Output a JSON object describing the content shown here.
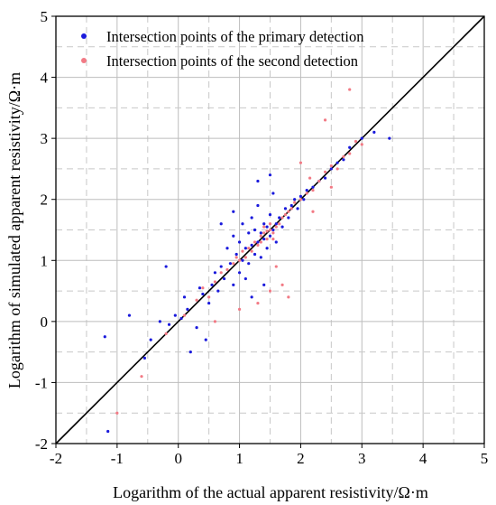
{
  "chart_data": {
    "type": "scatter",
    "xlabel": "Logarithm of the actual apparent resistivity/Ω·m",
    "ylabel": "Logarithm of simulated apparent resistivity/Ω·m",
    "xlim": [
      -2,
      5
    ],
    "ylim": [
      -2,
      5
    ],
    "x_ticks": [
      "-2",
      "-1",
      "0",
      "1",
      "2",
      "3",
      "4",
      "5"
    ],
    "y_ticks": [
      "-2",
      "-1",
      "0",
      "1",
      "2",
      "3",
      "4",
      "5"
    ],
    "grid": true,
    "minor_grid": "dashed",
    "reference_line": {
      "from": [
        -2,
        -2
      ],
      "to": [
        5,
        5
      ],
      "color": "#000000"
    },
    "legend_position": "top-left",
    "series": [
      {
        "name": "Intersection points of the primary detection",
        "color": "#1a1adc",
        "points": [
          [
            -1.2,
            -0.25
          ],
          [
            -1.15,
            -1.8
          ],
          [
            -0.8,
            0.1
          ],
          [
            -0.55,
            -0.6
          ],
          [
            -0.45,
            -0.3
          ],
          [
            -0.3,
            0.0
          ],
          [
            -0.2,
            0.9
          ],
          [
            -0.15,
            -0.05
          ],
          [
            -0.05,
            0.1
          ],
          [
            0.05,
            0.05
          ],
          [
            0.1,
            0.4
          ],
          [
            0.15,
            0.2
          ],
          [
            0.2,
            -0.5
          ],
          [
            0.3,
            -0.1
          ],
          [
            0.35,
            0.55
          ],
          [
            0.4,
            0.45
          ],
          [
            0.45,
            -0.3
          ],
          [
            0.5,
            0.3
          ],
          [
            0.55,
            0.6
          ],
          [
            0.6,
            0.8
          ],
          [
            0.65,
            0.5
          ],
          [
            0.7,
            0.9
          ],
          [
            0.75,
            0.7
          ],
          [
            0.8,
            1.2
          ],
          [
            0.85,
            0.95
          ],
          [
            0.9,
            1.4
          ],
          [
            0.9,
            0.6
          ],
          [
            0.95,
            1.1
          ],
          [
            1.0,
            1.3
          ],
          [
            1.0,
            0.8
          ],
          [
            1.05,
            1.6
          ],
          [
            1.05,
            1.0
          ],
          [
            1.1,
            1.2
          ],
          [
            1.1,
            0.7
          ],
          [
            1.15,
            1.45
          ],
          [
            1.15,
            0.95
          ],
          [
            1.2,
            1.7
          ],
          [
            1.2,
            1.25
          ],
          [
            1.25,
            1.1
          ],
          [
            1.25,
            1.5
          ],
          [
            1.3,
            1.9
          ],
          [
            1.3,
            1.3
          ],
          [
            1.35,
            1.45
          ],
          [
            1.35,
            1.05
          ],
          [
            1.4,
            1.6
          ],
          [
            1.4,
            1.35
          ],
          [
            1.45,
            1.55
          ],
          [
            1.45,
            1.2
          ],
          [
            1.5,
            1.75
          ],
          [
            1.5,
            1.4
          ],
          [
            1.55,
            1.5
          ],
          [
            1.55,
            2.1
          ],
          [
            1.6,
            1.6
          ],
          [
            1.6,
            1.3
          ],
          [
            1.65,
            1.7
          ],
          [
            1.7,
            1.55
          ],
          [
            1.75,
            1.85
          ],
          [
            1.8,
            1.7
          ],
          [
            1.85,
            1.9
          ],
          [
            1.9,
            2.0
          ],
          [
            1.95,
            1.85
          ],
          [
            2.0,
            2.05
          ],
          [
            2.05,
            2.0
          ],
          [
            2.1,
            2.15
          ],
          [
            2.2,
            2.2
          ],
          [
            2.3,
            2.3
          ],
          [
            2.4,
            2.35
          ],
          [
            2.5,
            2.5
          ],
          [
            2.6,
            2.6
          ],
          [
            2.7,
            2.65
          ],
          [
            2.8,
            2.85
          ],
          [
            3.0,
            3.0
          ],
          [
            3.2,
            3.1
          ],
          [
            3.45,
            3.0
          ],
          [
            1.3,
            2.3
          ],
          [
            1.5,
            2.4
          ],
          [
            1.2,
            0.4
          ],
          [
            1.4,
            0.6
          ],
          [
            0.9,
            1.8
          ],
          [
            0.7,
            1.6
          ]
        ]
      },
      {
        "name": "Intersection points of the second detection",
        "color": "#f27a85",
        "points": [
          [
            -1.0,
            -1.5
          ],
          [
            -0.6,
            -0.9
          ],
          [
            -0.2,
            -0.2
          ],
          [
            0.1,
            0.1
          ],
          [
            0.3,
            0.35
          ],
          [
            0.4,
            0.55
          ],
          [
            0.5,
            0.4
          ],
          [
            0.6,
            0.65
          ],
          [
            0.7,
            0.8
          ],
          [
            0.8,
            0.85
          ],
          [
            0.9,
            0.95
          ],
          [
            0.95,
            1.05
          ],
          [
            1.0,
            1.0
          ],
          [
            1.05,
            1.15
          ],
          [
            1.1,
            1.05
          ],
          [
            1.15,
            1.2
          ],
          [
            1.2,
            1.15
          ],
          [
            1.25,
            1.3
          ],
          [
            1.3,
            1.25
          ],
          [
            1.35,
            1.4
          ],
          [
            1.4,
            1.45
          ],
          [
            1.45,
            1.35
          ],
          [
            1.5,
            1.5
          ],
          [
            1.55,
            1.45
          ],
          [
            1.6,
            1.55
          ],
          [
            1.4,
            1.55
          ],
          [
            1.5,
            1.6
          ],
          [
            1.45,
            1.48
          ],
          [
            1.35,
            1.3
          ],
          [
            1.55,
            1.35
          ],
          [
            1.65,
            1.6
          ],
          [
            1.7,
            1.7
          ],
          [
            1.75,
            1.75
          ],
          [
            1.8,
            1.8
          ],
          [
            1.85,
            1.85
          ],
          [
            1.9,
            1.95
          ],
          [
            2.0,
            2.0
          ],
          [
            2.1,
            2.1
          ],
          [
            2.2,
            2.15
          ],
          [
            2.3,
            2.3
          ],
          [
            2.4,
            2.45
          ],
          [
            2.5,
            2.55
          ],
          [
            2.6,
            2.5
          ],
          [
            2.7,
            2.7
          ],
          [
            2.8,
            2.75
          ],
          [
            2.9,
            2.95
          ],
          [
            3.0,
            2.9
          ],
          [
            2.2,
            1.8
          ],
          [
            2.5,
            2.2
          ],
          [
            2.15,
            2.35
          ],
          [
            1.6,
            0.9
          ],
          [
            1.7,
            0.6
          ],
          [
            1.5,
            0.5
          ],
          [
            1.3,
            0.3
          ],
          [
            1.0,
            0.2
          ],
          [
            0.6,
            0.0
          ],
          [
            2.8,
            3.8
          ],
          [
            2.4,
            3.3
          ],
          [
            2.0,
            2.6
          ],
          [
            1.8,
            0.4
          ]
        ]
      }
    ]
  }
}
